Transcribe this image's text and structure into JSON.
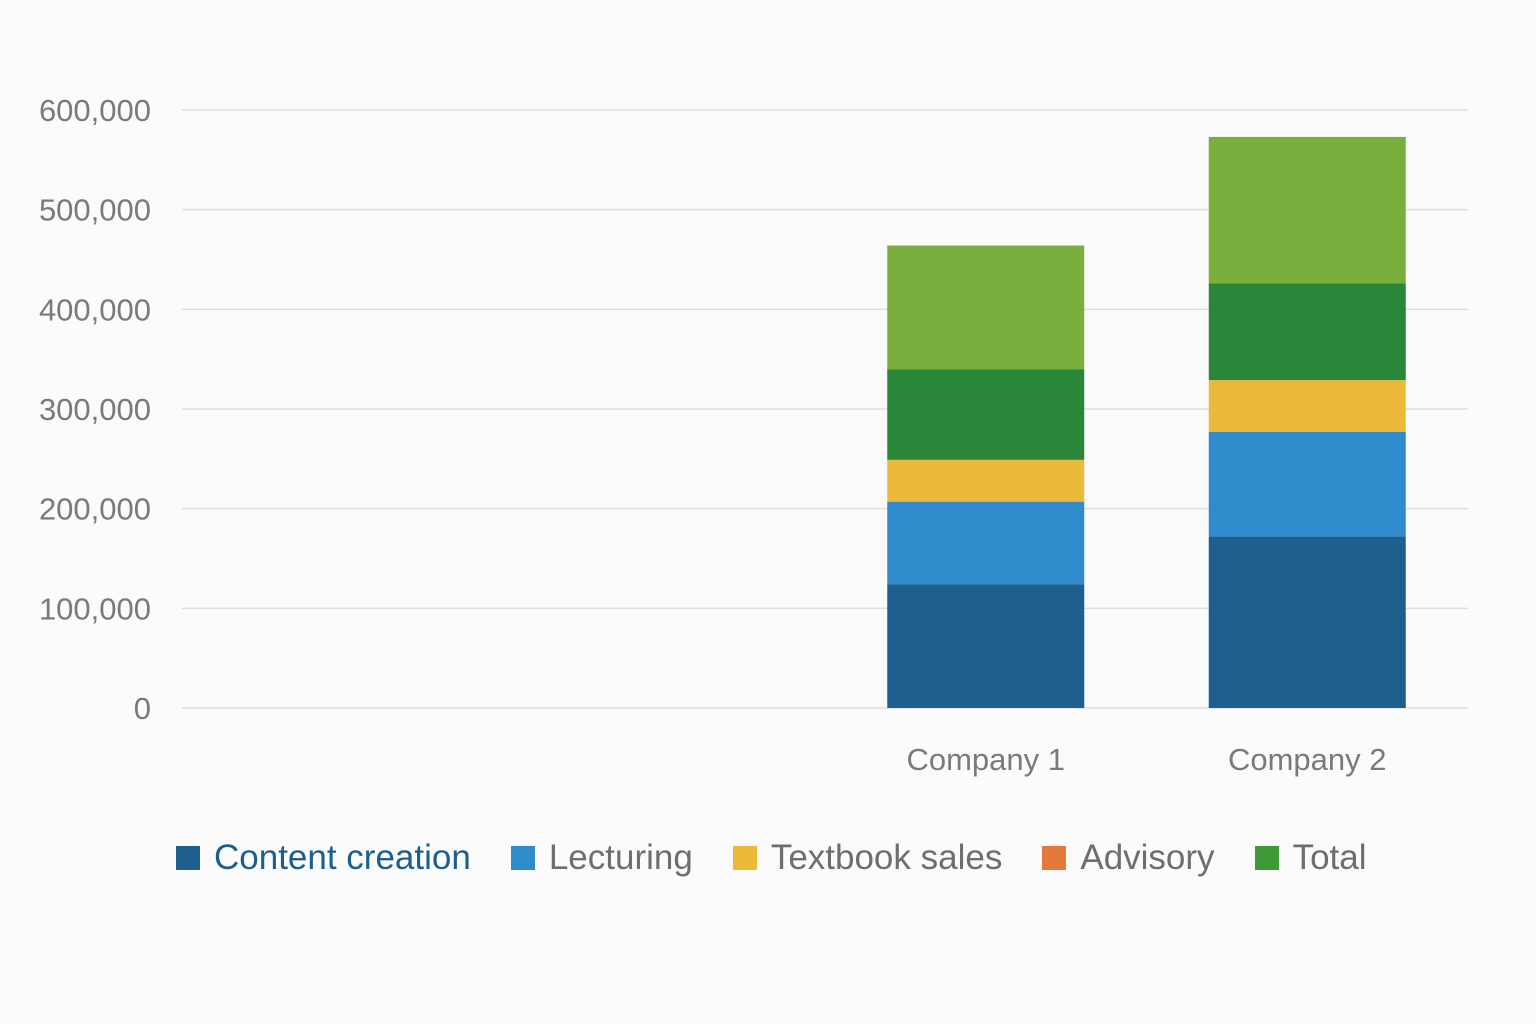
{
  "chart_data": {
    "type": "bar",
    "stacked": true,
    "title": "",
    "xlabel": "",
    "ylabel": "",
    "categories": [
      "",
      "",
      "Company 1",
      "Company 2"
    ],
    "ylim": [
      0,
      600000
    ],
    "yticks": [
      0,
      100000,
      200000,
      300000,
      400000,
      500000,
      600000
    ],
    "ytick_labels": [
      "0",
      "100,000",
      "200,000",
      "300,000",
      "400,000",
      "500,000",
      "600,000"
    ],
    "grid": true,
    "legend_position": "bottom",
    "series": [
      {
        "name": "Content creation",
        "color": "#1e5f8e",
        "values": [
          0,
          0,
          124000,
          172000
        ]
      },
      {
        "name": "Lecturing",
        "color": "#2f8bcb",
        "values": [
          0,
          0,
          83000,
          105000
        ]
      },
      {
        "name": "Textbook sales",
        "color": "#ebb93c",
        "values": [
          0,
          0,
          42000,
          52000
        ]
      },
      {
        "name": "",
        "color": "#2a8638",
        "values": [
          0,
          0,
          91000,
          97000
        ]
      },
      {
        "name": "",
        "color": "#7aaf3d",
        "values": [
          0,
          0,
          124000,
          147000
        ]
      }
    ],
    "legend": [
      {
        "label": "Content creation",
        "color": "#1e5f8e"
      },
      {
        "label": "Lecturing",
        "color": "#2f8bcb"
      },
      {
        "label": "Textbook sales",
        "color": "#ebb93c"
      },
      {
        "label": "Advisory",
        "color": "#e37a3a"
      },
      {
        "label": "Total",
        "color": "#3f9a3a"
      }
    ]
  }
}
